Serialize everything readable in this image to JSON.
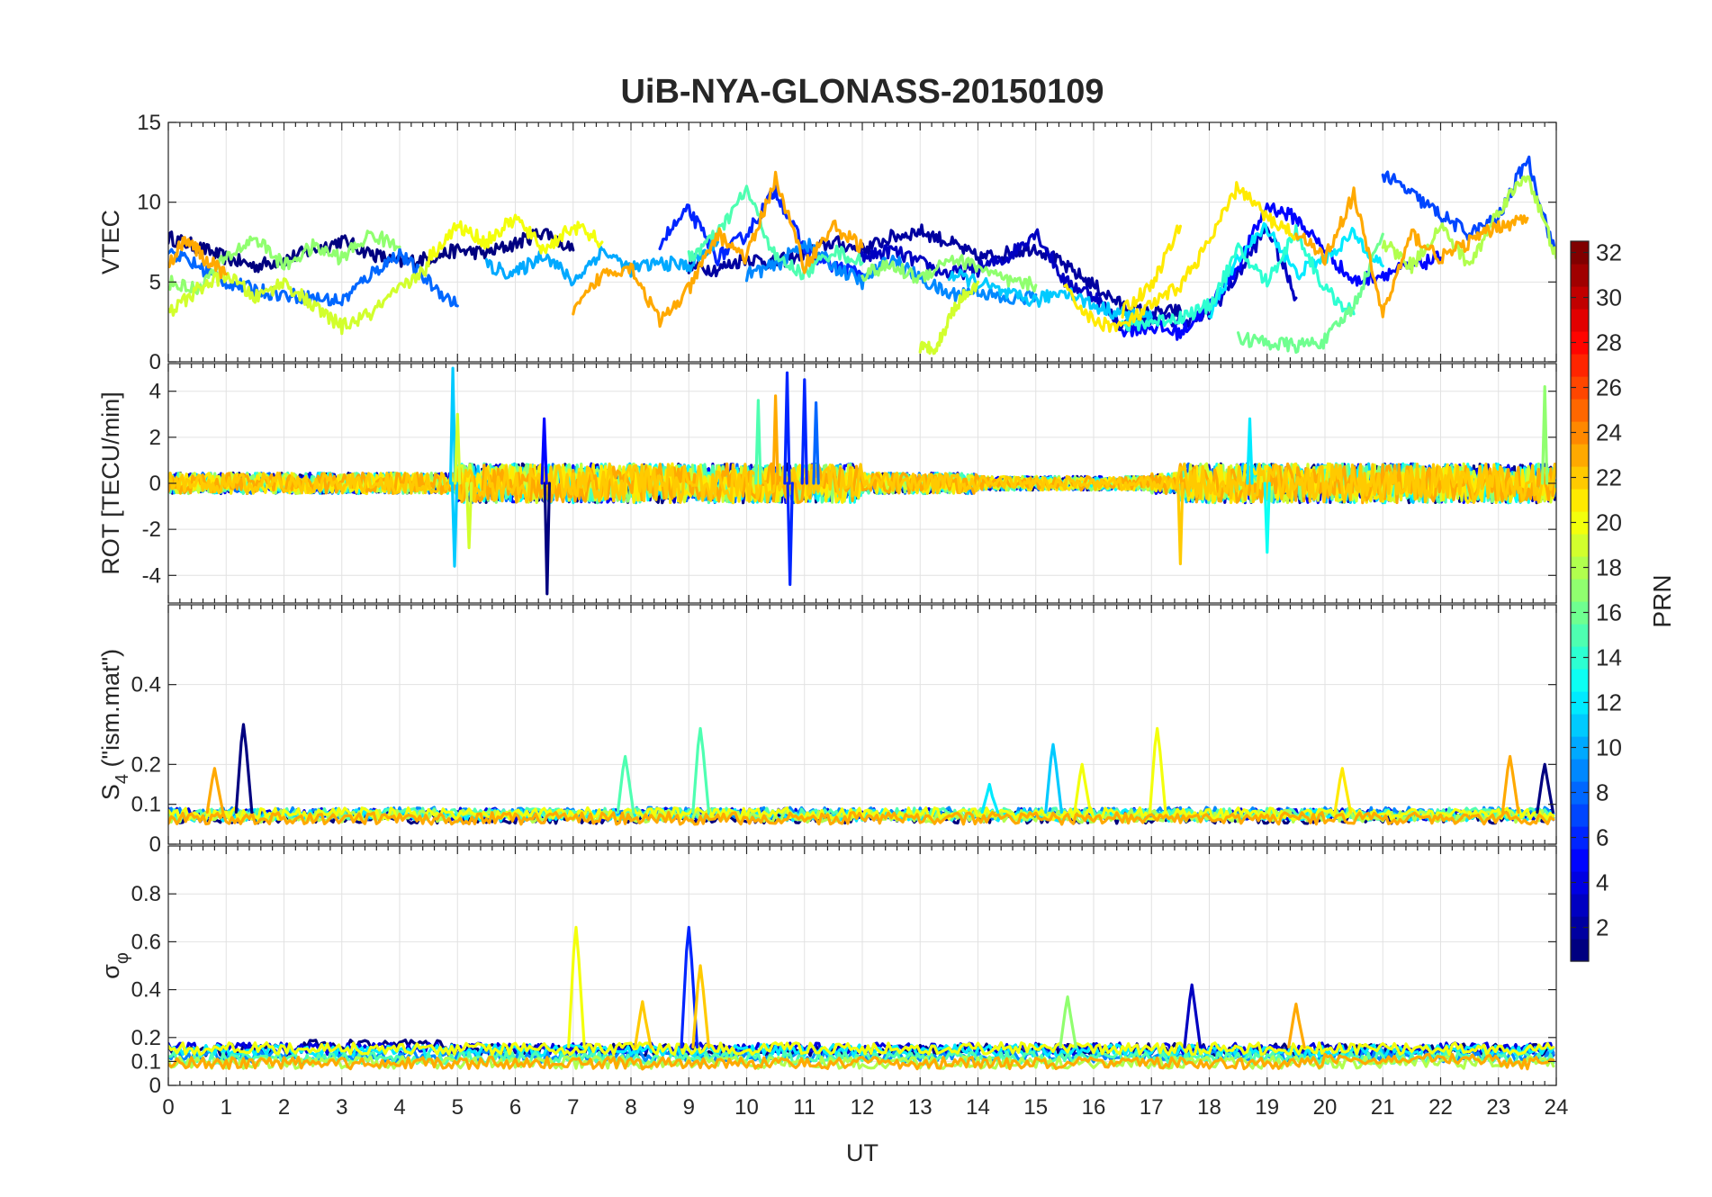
{
  "chart_data": {
    "type": "line",
    "title": "UiB-NYA-GLONASS-20150109",
    "xlabel": "UT",
    "xlim": [
      0,
      24
    ],
    "xticks": [
      "0",
      "1",
      "2",
      "3",
      "4",
      "5",
      "6",
      "7",
      "8",
      "9",
      "10",
      "11",
      "12",
      "13",
      "14",
      "15",
      "16",
      "17",
      "18",
      "19",
      "20",
      "21",
      "22",
      "23",
      "24"
    ],
    "colorbar": {
      "label": "PRN",
      "range": [
        1,
        32
      ],
      "ticks": [
        "2",
        "4",
        "6",
        "8",
        "10",
        "12",
        "14",
        "16",
        "18",
        "20",
        "22",
        "24",
        "26",
        "28",
        "30",
        "32"
      ],
      "colormap": "jet",
      "placement": "right"
    },
    "grid": true,
    "panels": [
      {
        "ylabel": "VTEC",
        "ylim": [
          0,
          15
        ],
        "yticks": [
          "0",
          "5",
          "10",
          "15"
        ],
        "series": [
          {
            "prn": 1,
            "x": [
              0.0,
              0.5,
              1.0,
              1.5,
              2.0,
              2.5,
              3.0,
              3.5,
              4.0,
              4.5,
              5.0,
              5.5,
              6.0,
              6.5,
              7.0
            ],
            "y": [
              7.8,
              7.2,
              6.5,
              6.0,
              6.4,
              7.0,
              7.6,
              6.8,
              6.2,
              6.5,
              7.0,
              6.8,
              7.4,
              8.2,
              7.0
            ]
          },
          {
            "prn": 2,
            "x": [
              9.0,
              9.5,
              10.0,
              10.5,
              11.0,
              11.5,
              12.0,
              12.5,
              13.0,
              13.5,
              14.0,
              14.5,
              15.0,
              15.5,
              16.0,
              16.5,
              17.0,
              17.5
            ],
            "y": [
              6.0,
              5.8,
              6.5,
              6.2,
              6.8,
              7.5,
              7.0,
              7.8,
              8.2,
              7.5,
              6.5,
              6.8,
              7.2,
              6.0,
              4.8,
              3.5,
              3.0,
              3.2
            ]
          },
          {
            "prn": 3,
            "x": [
              12.0,
              12.5,
              13.0,
              13.5,
              14.0,
              14.5,
              15.0,
              15.5,
              16.0,
              16.5,
              17.0,
              17.5,
              18.0,
              18.5,
              19.0,
              19.5
            ],
            "y": [
              6.5,
              7.0,
              6.2,
              5.5,
              5.8,
              6.5,
              8.2,
              5.0,
              4.2,
              2.2,
              2.8,
              2.5,
              3.0,
              5.5,
              8.5,
              4.0
            ]
          },
          {
            "prn": 5,
            "x": [
              16.5,
              17.0,
              17.5,
              18.0,
              18.5,
              19.0,
              19.5,
              20.0,
              20.5,
              21.0,
              21.5,
              22.0
            ],
            "y": [
              2.0,
              2.2,
              1.8,
              3.5,
              6.0,
              9.8,
              9.0,
              7.0,
              5.0,
              5.5,
              6.0,
              6.5
            ]
          },
          {
            "prn": 6,
            "x": [
              8.5,
              9.0,
              9.5,
              10.0,
              10.5,
              11.0,
              11.5,
              12.0
            ],
            "y": [
              7.5,
              9.5,
              6.5,
              8.0,
              10.8,
              7.0,
              6.0,
              5.5
            ]
          },
          {
            "prn": 7,
            "x": [
              21.0,
              21.5,
              22.0,
              22.5,
              23.0,
              23.5,
              24.0
            ],
            "y": [
              11.8,
              10.5,
              9.2,
              8.0,
              9.0,
              12.8,
              6.5
            ]
          },
          {
            "prn": 8,
            "x": [
              0.0,
              0.5,
              1.0,
              1.5,
              2.0,
              2.5,
              3.0,
              3.5,
              4.0,
              4.5,
              5.0
            ],
            "y": [
              7.0,
              6.0,
              5.0,
              4.5,
              4.2,
              4.0,
              3.8,
              5.5,
              6.8,
              5.0,
              3.5
            ]
          },
          {
            "prn": 9,
            "x": [
              10.0,
              10.5,
              11.0,
              11.5,
              12.0,
              12.5,
              13.0,
              13.5,
              14.0,
              14.5,
              15.0
            ],
            "y": [
              5.5,
              6.0,
              7.5,
              6.0,
              5.0,
              6.5,
              5.2,
              4.2,
              4.5,
              3.8,
              4.2
            ]
          },
          {
            "prn": 10,
            "x": [
              5.5,
              6.0,
              6.5,
              7.0,
              7.5,
              8.0,
              8.5,
              9.0,
              9.5
            ],
            "y": [
              6.0,
              5.5,
              6.8,
              5.0,
              7.0,
              5.8,
              6.2,
              6.0,
              7.5
            ]
          },
          {
            "prn": 11,
            "x": [
              13.5,
              14.0,
              14.5,
              15.0,
              15.5,
              16.0,
              16.5,
              17.0
            ],
            "y": [
              5.5,
              5.0,
              4.2,
              3.8,
              4.5,
              3.5,
              3.0,
              2.8
            ]
          },
          {
            "prn": 12,
            "x": [
              18.0,
              18.5,
              19.0,
              19.5,
              20.0,
              20.5,
              21.0
            ],
            "y": [
              3.0,
              6.5,
              8.5,
              5.5,
              6.5,
              8.0,
              6.0
            ]
          },
          {
            "prn": 14,
            "x": [
              16.5,
              17.0,
              17.5,
              18.0,
              18.5,
              19.0,
              19.5,
              20.0,
              20.5
            ],
            "y": [
              2.2,
              2.5,
              2.8,
              3.5,
              7.0,
              5.0,
              8.2,
              4.5,
              3.0
            ]
          },
          {
            "prn": 15,
            "x": [
              9.0,
              9.5,
              10.0,
              10.5,
              11.0,
              11.5,
              12.0
            ],
            "y": [
              6.5,
              8.0,
              10.8,
              6.5,
              5.5,
              7.0,
              6.2
            ]
          },
          {
            "prn": 16,
            "x": [
              18.5,
              19.0,
              19.5,
              20.0,
              20.5,
              21.0
            ],
            "y": [
              1.5,
              1.2,
              1.0,
              1.3,
              3.5,
              8.0
            ]
          },
          {
            "prn": 17,
            "x": [
              0.0,
              0.5,
              1.0,
              1.5,
              2.0,
              2.5,
              3.0,
              3.5,
              4.0
            ],
            "y": [
              5.0,
              4.5,
              6.5,
              7.8,
              6.0,
              7.2,
              6.5,
              8.0,
              7.2
            ]
          },
          {
            "prn": 17,
            "x": [
              12.0,
              12.5,
              13.0,
              13.5,
              14.0,
              14.5,
              15.0
            ],
            "y": [
              5.5,
              6.0,
              5.2,
              6.5,
              6.0,
              5.0,
              4.8
            ]
          },
          {
            "prn": 18,
            "x": [
              21.0,
              21.5,
              22.0,
              22.5,
              23.0,
              23.5,
              24.0
            ],
            "y": [
              7.5,
              6.0,
              8.5,
              6.0,
              9.5,
              11.8,
              6.5
            ]
          },
          {
            "prn": 19,
            "x": [
              0.0,
              0.5,
              1.0,
              1.5,
              2.0,
              2.5,
              3.0,
              3.5,
              4.0,
              4.5
            ],
            "y": [
              3.0,
              4.5,
              5.5,
              4.0,
              5.0,
              3.5,
              2.2,
              3.0,
              4.5,
              6.0
            ]
          },
          {
            "prn": 19,
            "x": [
              13.0,
              13.3,
              13.6,
              14.0
            ],
            "y": [
              0.8,
              1.0,
              3.5,
              5.0
            ]
          },
          {
            "prn": 20,
            "x": [
              4.5,
              5.0,
              5.5,
              6.0,
              6.5,
              7.0,
              7.5
            ],
            "y": [
              6.5,
              8.5,
              7.5,
              9.0,
              7.0,
              8.5,
              7.5
            ]
          },
          {
            "prn": 21,
            "x": [
              15.5,
              16.0,
              16.5,
              17.0,
              17.5,
              18.0,
              18.5,
              19.0,
              19.5
            ],
            "y": [
              4.5,
              2.5,
              2.2,
              3.5,
              4.8,
              7.5,
              11.0,
              9.0,
              8.0
            ]
          },
          {
            "prn": 21,
            "x": [
              16.5,
              17.0,
              17.5
            ],
            "y": [
              3.2,
              4.8,
              8.5
            ]
          },
          {
            "prn": 23,
            "x": [
              0.0,
              0.3,
              0.6,
              1.0
            ],
            "y": [
              6.0,
              7.8,
              6.5,
              5.5
            ]
          },
          {
            "prn": 23,
            "x": [
              7.0,
              7.5,
              8.0,
              8.5,
              9.0,
              9.5,
              10.0,
              10.5,
              11.0,
              11.5,
              12.0
            ],
            "y": [
              3.0,
              5.5,
              6.0,
              2.5,
              4.5,
              8.0,
              6.5,
              11.5,
              6.0,
              8.5,
              7.2
            ]
          },
          {
            "prn": 23,
            "x": [
              19.5,
              20.0,
              20.5,
              21.0,
              21.5,
              22.0,
              22.5,
              23.0,
              23.5
            ],
            "y": [
              8.0,
              6.5,
              10.5,
              3.0,
              8.0,
              6.5,
              7.5,
              8.5,
              9.0
            ]
          }
        ]
      },
      {
        "ylabel": "ROT [TECU/min]",
        "ylim": [
          -5.2,
          5.2
        ],
        "yticks": [
          "-4",
          "-2",
          "0",
          "2",
          "4"
        ],
        "spikes": [
          {
            "prn": 11,
            "x": 4.92,
            "y": 5.0
          },
          {
            "prn": 11,
            "x": 4.95,
            "y": -3.6
          },
          {
            "prn": 19,
            "x": 5.0,
            "y": 3.0
          },
          {
            "prn": 19,
            "x": 5.2,
            "y": -2.8
          },
          {
            "prn": 1,
            "x": 6.55,
            "y": -4.8
          },
          {
            "prn": 5,
            "x": 6.5,
            "y": 2.8
          },
          {
            "prn": 6,
            "x": 10.7,
            "y": 4.8
          },
          {
            "prn": 6,
            "x": 10.75,
            "y": -4.4
          },
          {
            "prn": 6,
            "x": 11.0,
            "y": 4.5
          },
          {
            "prn": 8,
            "x": 11.2,
            "y": 3.5
          },
          {
            "prn": 15,
            "x": 10.2,
            "y": 3.6
          },
          {
            "prn": 23,
            "x": 10.5,
            "y": 3.8
          },
          {
            "prn": 22,
            "x": 17.5,
            "y": -3.5
          },
          {
            "prn": 17,
            "x": 23.8,
            "y": 4.2
          },
          {
            "prn": 12,
            "x": 18.7,
            "y": 2.8
          },
          {
            "prn": 13,
            "x": 19.0,
            "y": -3.0
          }
        ]
      },
      {
        "ylabel": "S4 (\"ism.mat\")",
        "ylabel_main": "S",
        "ylabel_sub": "4",
        "ylabel_rest": " (\"ism.mat\")",
        "ylim": [
          0,
          0.6
        ],
        "yticks": [
          "0",
          "0.1",
          "0.2",
          "0.4"
        ],
        "peaks": [
          {
            "prn": 1,
            "x": 1.3,
            "y": 0.3
          },
          {
            "prn": 23,
            "x": 0.8,
            "y": 0.19
          },
          {
            "prn": 15,
            "x": 7.9,
            "y": 0.22
          },
          {
            "prn": 15,
            "x": 9.2,
            "y": 0.29
          },
          {
            "prn": 11,
            "x": 15.3,
            "y": 0.25
          },
          {
            "prn": 20,
            "x": 15.8,
            "y": 0.2
          },
          {
            "prn": 20,
            "x": 17.1,
            "y": 0.29
          },
          {
            "prn": 21,
            "x": 20.3,
            "y": 0.19
          },
          {
            "prn": 23,
            "x": 23.2,
            "y": 0.22
          },
          {
            "prn": 1,
            "x": 23.8,
            "y": 0.2
          },
          {
            "prn": 12,
            "x": 14.2,
            "y": 0.15
          }
        ]
      },
      {
        "ylabel": "σφ",
        "ylabel_main": "σ",
        "ylabel_sub": "φ",
        "ylim": [
          0,
          1
        ],
        "yticks": [
          "0",
          "0.1",
          "0.2",
          "0.4",
          "0.6",
          "0.8"
        ],
        "peaks": [
          {
            "prn": 20,
            "x": 7.05,
            "y": 0.66
          },
          {
            "prn": 6,
            "x": 9.0,
            "y": 0.66
          },
          {
            "prn": 22,
            "x": 9.2,
            "y": 0.5
          },
          {
            "prn": 3,
            "x": 17.7,
            "y": 0.42
          },
          {
            "prn": 17,
            "x": 15.55,
            "y": 0.37
          },
          {
            "prn": 23,
            "x": 19.5,
            "y": 0.34
          },
          {
            "prn": 22,
            "x": 8.2,
            "y": 0.35
          }
        ]
      }
    ]
  }
}
